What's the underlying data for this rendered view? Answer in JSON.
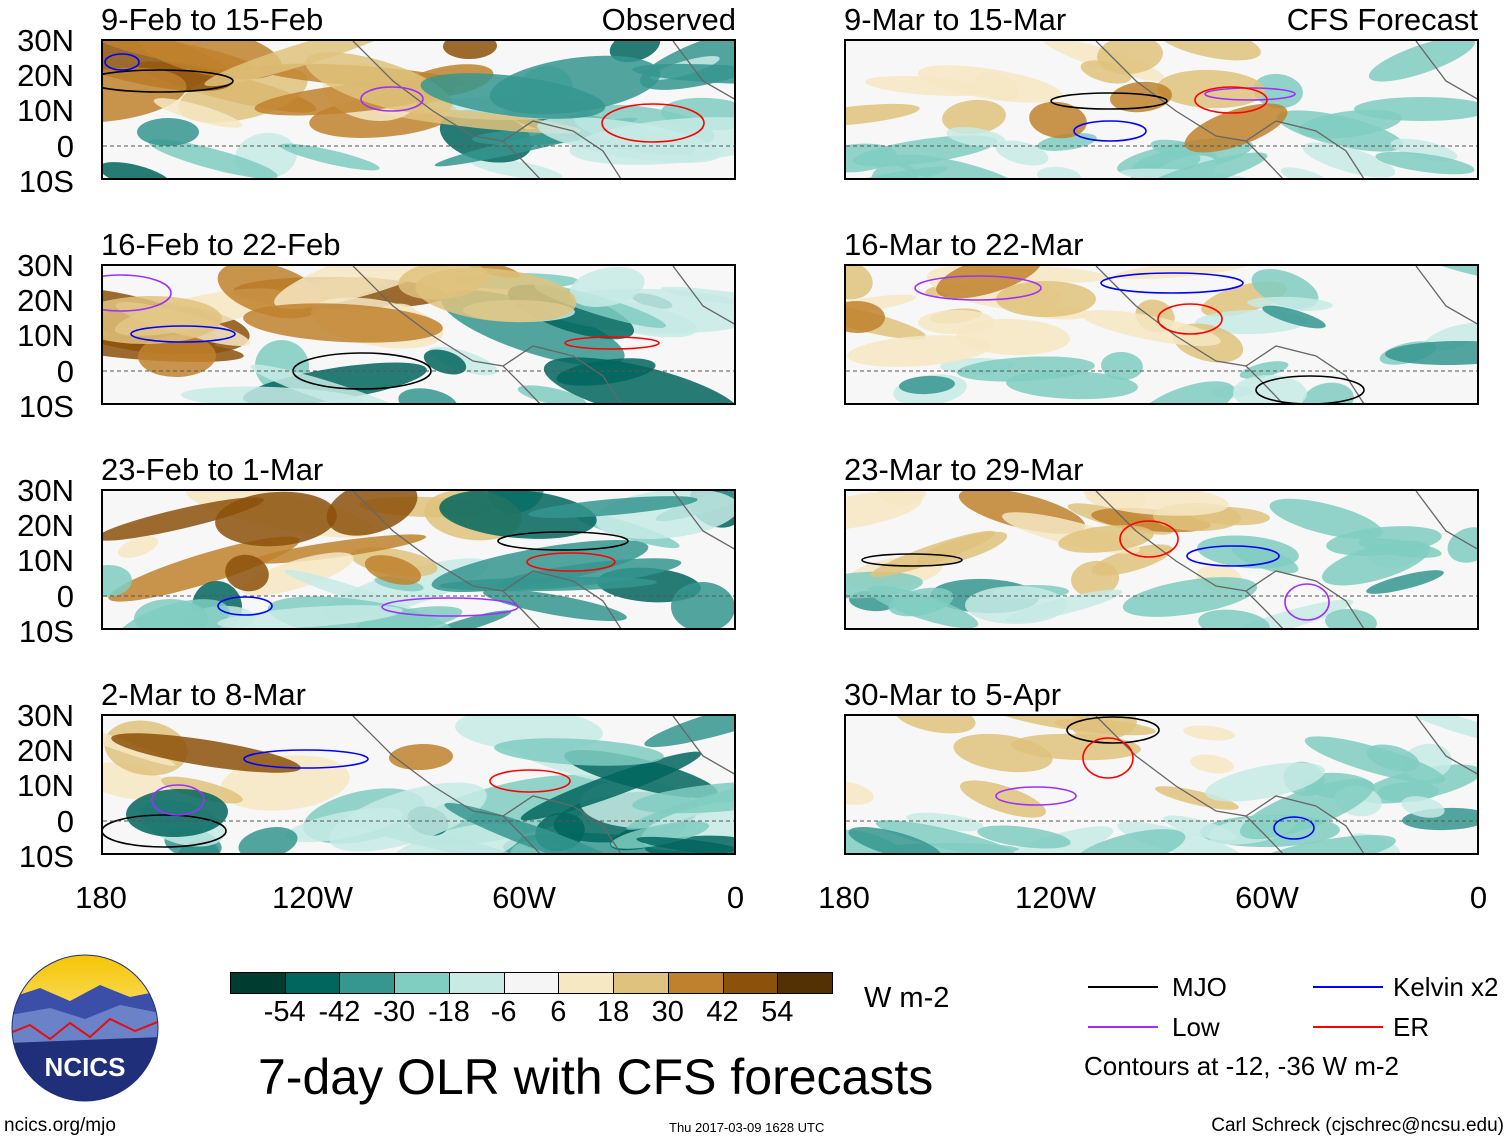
{
  "panels_left_header_right": "Observed",
  "panels_right_header_right": "CFS Forecast",
  "panels": [
    {
      "title": "9-Feb to 15-Feb",
      "column": "observed"
    },
    {
      "title": "16-Feb to 22-Feb",
      "column": "observed"
    },
    {
      "title": "23-Feb to 1-Mar",
      "column": "observed"
    },
    {
      "title": "2-Mar to 8-Mar",
      "column": "observed"
    },
    {
      "title": "9-Mar to 15-Mar",
      "column": "forecast"
    },
    {
      "title": "16-Mar to 22-Mar",
      "column": "forecast"
    },
    {
      "title": "23-Mar to 29-Mar",
      "column": "forecast"
    },
    {
      "title": "30-Mar to 5-Apr",
      "column": "forecast"
    }
  ],
  "lat_labels": [
    "30N",
    "20N",
    "10N",
    "0",
    "10S"
  ],
  "lon_labels": [
    "180",
    "120W",
    "60W",
    "0"
  ],
  "colorbar": {
    "colors": [
      "#003c30",
      "#01665e",
      "#35978f",
      "#80cdc1",
      "#c7eae5",
      "#f5f5f5",
      "#f6e8c3",
      "#dfc27d",
      "#bf812d",
      "#8c510a",
      "#543005"
    ],
    "labels": [
      "-54",
      "-42",
      "-30",
      "-18",
      "-6",
      "6",
      "18",
      "30",
      "42",
      "54"
    ],
    "units": "W m-2"
  },
  "title": "7-day OLR with CFS forecasts",
  "legend": {
    "items": [
      {
        "label": "MJO",
        "color": "#000000"
      },
      {
        "label": "Kelvin x2",
        "color": "#0000ff"
      },
      {
        "label": "Low",
        "color": "#9b30ff"
      },
      {
        "label": "ER",
        "color": "#ff0000"
      }
    ],
    "note": "Contours at -12, -36 W m-2"
  },
  "logo_text": "NCICS",
  "footer": {
    "url": "ncics.org/mjo",
    "timestamp": "Thu 2017-03-09 1628 UTC",
    "author": "Carl Schreck (cjschrec@ncsu.edu)"
  }
}
